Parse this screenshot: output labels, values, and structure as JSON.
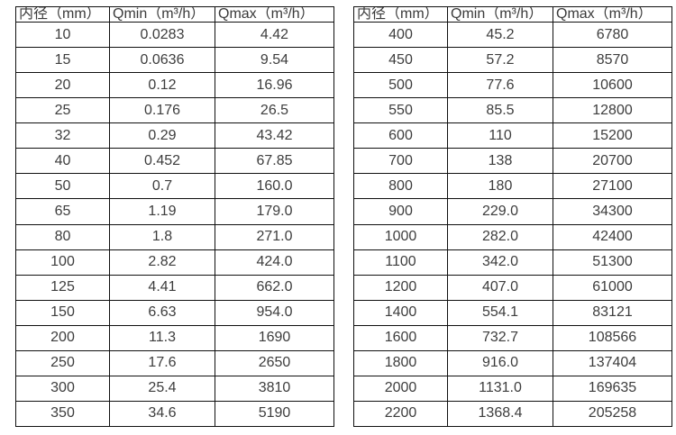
{
  "page": {
    "background": "#ffffff",
    "border_color": "#101010",
    "text_color": "#3d3d3d"
  },
  "tables": [
    {
      "name": "flow-table-small-diameters",
      "headers": [
        "内径（mm）",
        "Qmin（m³/h）",
        "Qmax（m³/h）"
      ],
      "rows": [
        [
          "10",
          "0.0283",
          "4.42"
        ],
        [
          "15",
          "0.0636",
          "9.54"
        ],
        [
          "20",
          "0.12",
          "16.96"
        ],
        [
          "25",
          "0.176",
          "26.5"
        ],
        [
          "32",
          "0.29",
          "43.42"
        ],
        [
          "40",
          "0.452",
          "67.85"
        ],
        [
          "50",
          "0.7",
          "160.0"
        ],
        [
          "65",
          "1.19",
          "179.0"
        ],
        [
          "80",
          "1.8",
          "271.0"
        ],
        [
          "100",
          "2.82",
          "424.0"
        ],
        [
          "125",
          "4.41",
          "662.0"
        ],
        [
          "150",
          "6.63",
          "954.0"
        ],
        [
          "200",
          "11.3",
          "1690"
        ],
        [
          "250",
          "17.6",
          "2650"
        ],
        [
          "300",
          "25.4",
          "3810"
        ],
        [
          "350",
          "34.6",
          "5190"
        ]
      ]
    },
    {
      "name": "flow-table-large-diameters",
      "headers": [
        "内径（mm）",
        "Qmin（m³/h）",
        "Qmax（m³/h）"
      ],
      "rows": [
        [
          "400",
          "45.2",
          "6780"
        ],
        [
          "450",
          "57.2",
          "8570"
        ],
        [
          "500",
          "77.6",
          "10600"
        ],
        [
          "550",
          "85.5",
          "12800"
        ],
        [
          "600",
          "110",
          "15200"
        ],
        [
          "700",
          "138",
          "20700"
        ],
        [
          "800",
          "180",
          "27100"
        ],
        [
          "900",
          "229.0",
          "34300"
        ],
        [
          "1000",
          "282.0",
          "42400"
        ],
        [
          "1100",
          "342.0",
          "51300"
        ],
        [
          "1200",
          "407.0",
          "61000"
        ],
        [
          "1400",
          "554.1",
          "83121"
        ],
        [
          "1600",
          "732.7",
          "108566"
        ],
        [
          "1800",
          "916.0",
          "137404"
        ],
        [
          "2000",
          "1131.0",
          "169635"
        ],
        [
          "2200",
          "1368.4",
          "205258"
        ]
      ]
    }
  ]
}
